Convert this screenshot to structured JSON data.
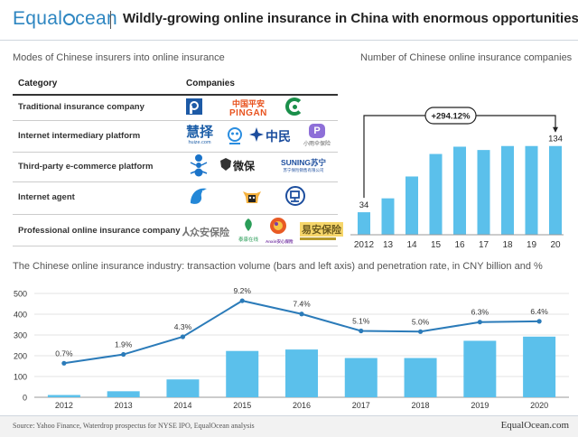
{
  "header": {
    "brand_left": "Equal",
    "brand_right": "cean",
    "title": "Wildly-growing online insurance in China with enormous opportunities"
  },
  "modes": {
    "title": "Modes of Chinese insurers into online insurance",
    "col_category": "Category",
    "col_companies": "Companies",
    "rows": [
      {
        "label": "Traditional insurance company"
      },
      {
        "label": "Internet intermediary platform"
      },
      {
        "label": "Third-party e-commerce platform"
      },
      {
        "label": "Internet agent"
      },
      {
        "label": "Professional online insurance company"
      }
    ],
    "logos": {
      "pingan_cn": "中国平安",
      "pingan_en": "PINGAN",
      "huize_cn": "慧择",
      "huize_en": "huize.com",
      "zhongmin": "中民",
      "xiaoyusan": "小雨伞保险",
      "weibao": "微保",
      "suning": "SUNING苏宁",
      "suning_sub": "苏宁保险销售有限公司",
      "zhongan": "众安保险",
      "taikang": "泰康在线",
      "anxin": "Anxin安心保险",
      "yian": "易安保险"
    }
  },
  "companies_chart": {
    "title": "Number of Chinese online insurance companies",
    "growth_label": "+294.12%",
    "color": "#5bc0eb"
  },
  "volume_chart": {
    "title": "The Chinese online insurance industry: transaction volume (bars and left axis) and penetration rate, in CNY billion and %",
    "bar_color": "#5bc0eb",
    "line_color": "#2b7bb9"
  },
  "footer": {
    "source": "Source: Yahoo Finance, Waterdrop prospectus for NYSE IPO, EqualOcean analysis",
    "brand": "EqualOcean.com"
  },
  "chart_data": [
    {
      "type": "bar",
      "categories": [
        "2012",
        "13",
        "14",
        "15",
        "16",
        "17",
        "18",
        "19",
        "20"
      ],
      "values": [
        34,
        55,
        88,
        122,
        133,
        128,
        134,
        134,
        134
      ],
      "data_labels": {
        "2012": "34",
        "20": "134"
      },
      "ylim": [
        0,
        150
      ]
    },
    {
      "type": "bar",
      "categories": [
        "2012",
        "2013",
        "2014",
        "2015",
        "2016",
        "2017",
        "2018",
        "2019",
        "2020"
      ],
      "series": [
        {
          "values": [
            11,
            29,
            86,
            223,
            230,
            189,
            189,
            272,
            292
          ]
        },
        {
          "values": [
            0.7,
            1.9,
            4.3,
            9.2,
            7.4,
            5.1,
            5.0,
            6.3,
            6.4
          ],
          "labels": [
            "0.7%",
            "1.9%",
            "4.3%",
            "9.2%",
            "7.4%",
            "5.1%",
            "5.0%",
            "6.3%",
            "6.4%"
          ]
        }
      ],
      "yticks": [
        "0",
        "100",
        "200",
        "300",
        "400",
        "500"
      ],
      "ylim": [
        0,
        520
      ]
    }
  ]
}
